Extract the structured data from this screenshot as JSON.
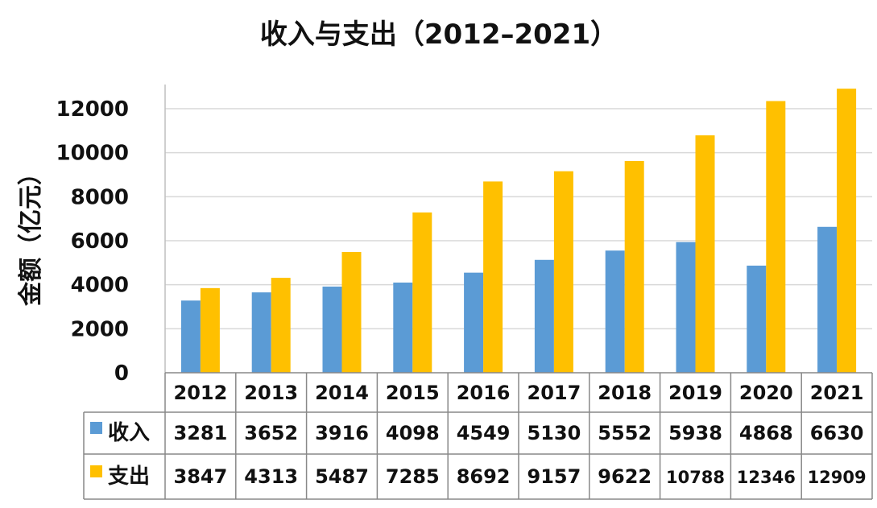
{
  "chart_data": {
    "type": "bar",
    "title": "收入与支出（2012–2021）",
    "xlabel": "",
    "ylabel": "金额（亿元）",
    "ylim": [
      0,
      13000
    ],
    "yticks": [
      0,
      2000,
      4000,
      6000,
      8000,
      10000,
      12000
    ],
    "grid": true,
    "legend": "data-table",
    "categories": [
      "2012",
      "2013",
      "2014",
      "2015",
      "2016",
      "2017",
      "2018",
      "2019",
      "2020",
      "2021"
    ],
    "series": [
      {
        "name": "收入",
        "color": "#5B9BD5",
        "values": [
          3281,
          3652,
          3916,
          4098,
          4549,
          5130,
          5552,
          5938,
          4868,
          6630
        ]
      },
      {
        "name": "支出",
        "color": "#FFC000",
        "values": [
          3847,
          4313,
          5487,
          7285,
          8692,
          9157,
          9622,
          10788,
          12346,
          12909
        ]
      }
    ]
  }
}
